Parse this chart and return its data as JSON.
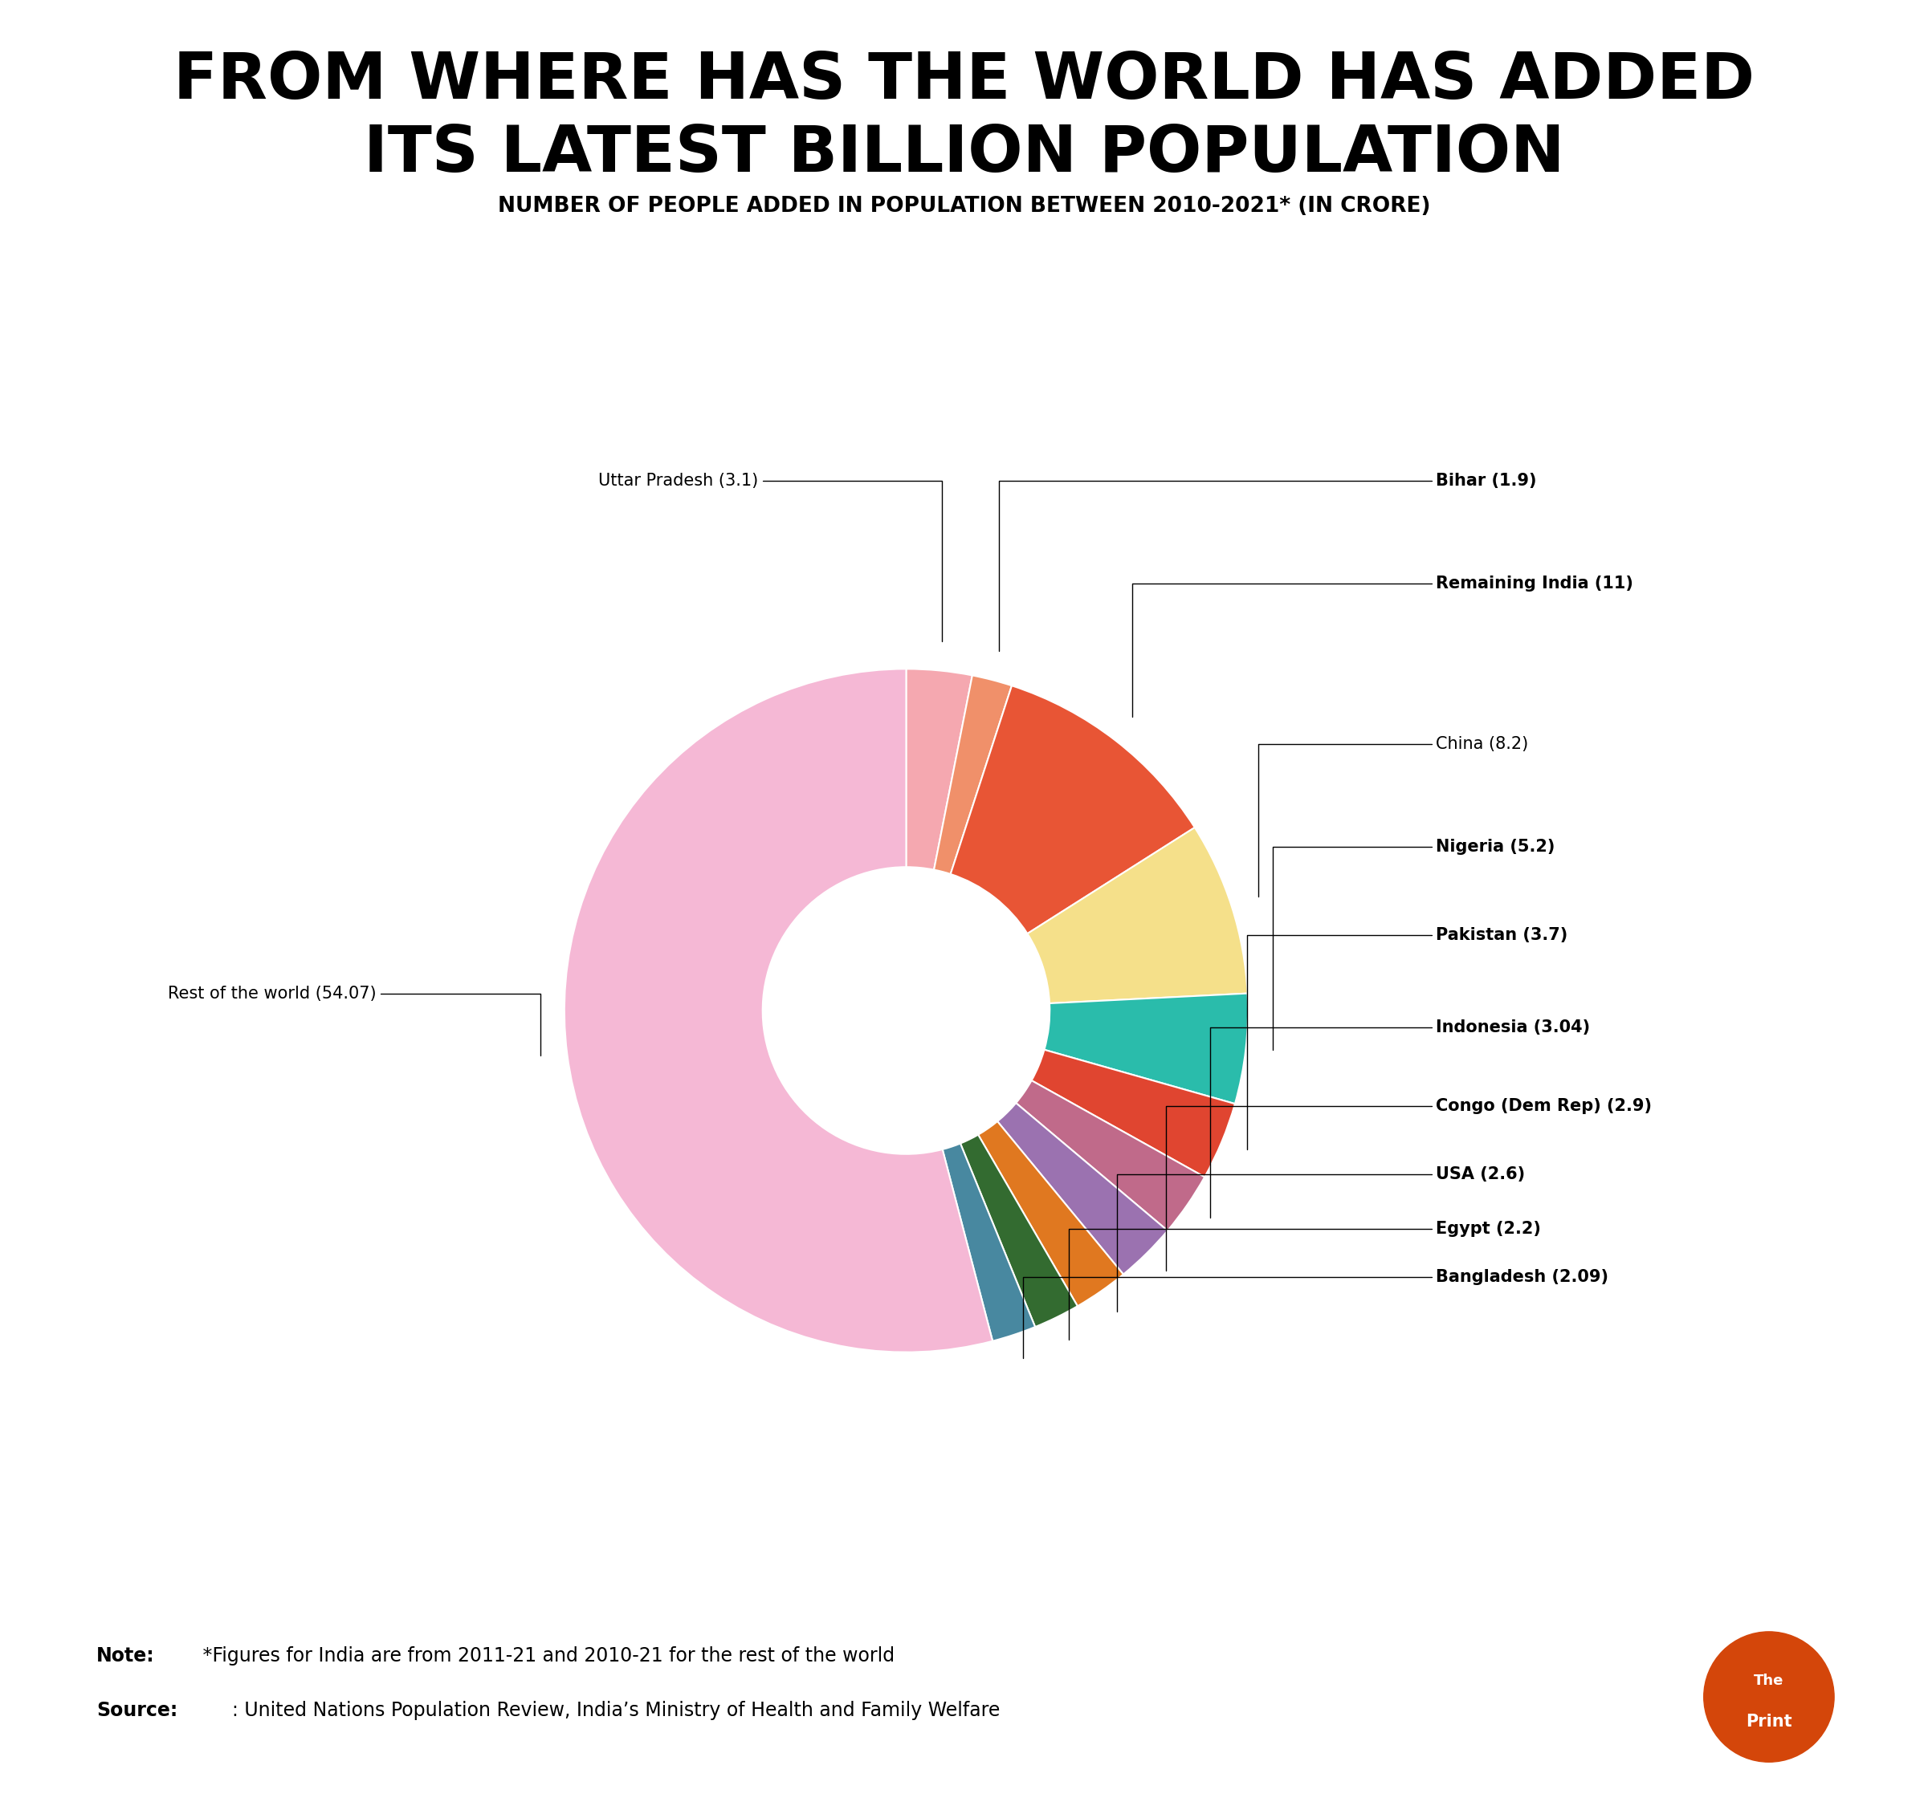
{
  "title_line1": "FROM WHERE HAS THE WORLD HAS ADDED",
  "title_line2": "ITS LATEST BILLION POPULATION",
  "subtitle": "NUMBER OF PEOPLE ADDED IN POPULATION BETWEEN 2010-2021* (IN CRORE)",
  "subtitle_bg": "#87CEEB",
  "background_color": "#ffffff",
  "note_bold": "Note:",
  "note_rest": " *Figures for India are from 2011-21 and 2010-21 for the rest of the world",
  "source_bold": "Source:",
  "source_rest": "  : United Nations Population Review, India’s Ministry of Health and Family Welfare",
  "labels": [
    "Uttar Pradesh",
    "Bihar",
    "Remaining India",
    "China",
    "Nigeria",
    "Pakistan",
    "Indonesia",
    "Congo (Dem Rep)",
    "USA",
    "Egypt",
    "Bangladesh",
    "Rest of the world"
  ],
  "values": [
    3.1,
    1.9,
    11.0,
    8.2,
    5.2,
    3.7,
    3.04,
    2.9,
    2.6,
    2.2,
    2.09,
    54.07
  ],
  "colors": [
    "#f5a8b0",
    "#f0906a",
    "#e85535",
    "#f5e08a",
    "#2abcab",
    "#e04530",
    "#c06a8a",
    "#9b72b0",
    "#e07820",
    "#336b30",
    "#4888a0",
    "#f5b8d5"
  ],
  "donut_ratio": 0.42
}
